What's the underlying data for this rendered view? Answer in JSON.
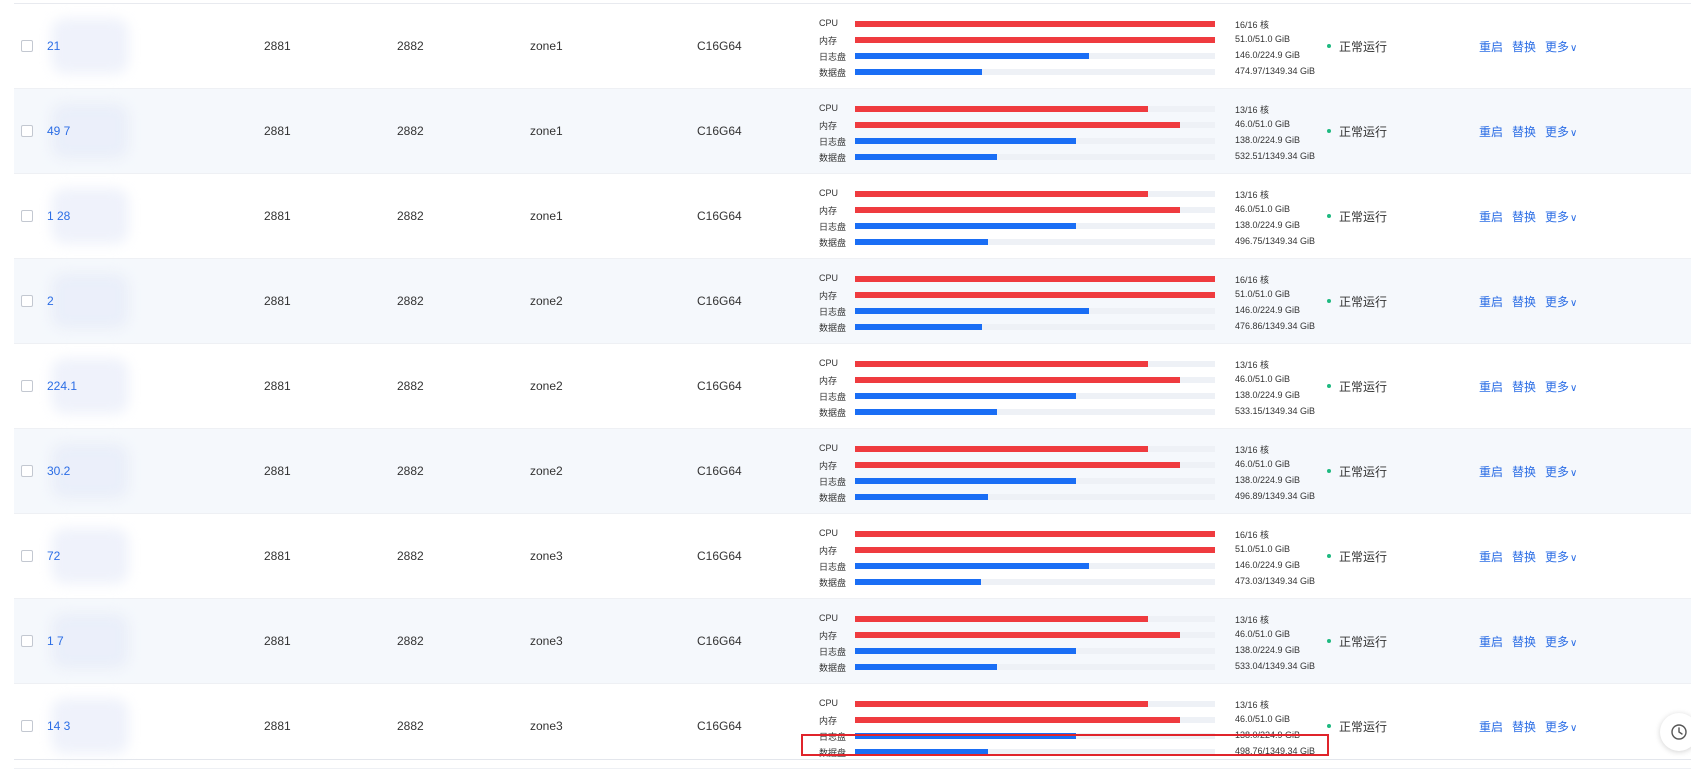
{
  "colors": {
    "cpu_fill": "#ef3b3f",
    "mem_fill": "#ef3b3f",
    "log_fill": "#1a6ef5",
    "data_fill": "#1a6ef5",
    "link": "#2b6de5",
    "status_dot": "#1eb980",
    "highlight": "#e0242b"
  },
  "resource_labels": {
    "cpu": "CPU",
    "memory": "内存",
    "log_disk": "日志盘",
    "data_disk": "数据盘"
  },
  "actions": {
    "restart": "重启",
    "replace": "替换",
    "more": "更多"
  },
  "rows": [
    {
      "ip": "21",
      "port1": "2881",
      "port2": "2882",
      "zone": "zone1",
      "spec": "C16G64",
      "cpu": {
        "used": 16,
        "total": 16,
        "text": "16/16 核"
      },
      "memory": {
        "used": 51.0,
        "total": 51.0,
        "text": "51.0/51.0 GiB"
      },
      "log_disk": {
        "used": 146.0,
        "total": 224.9,
        "text": "146.0/224.9 GiB"
      },
      "data_disk": {
        "used": 474.97,
        "total": 1349.34,
        "text": "474.97/1349.34 GiB"
      },
      "status": "正常运行"
    },
    {
      "ip": "49  7",
      "port1": "2881",
      "port2": "2882",
      "zone": "zone1",
      "spec": "C16G64",
      "cpu": {
        "used": 13,
        "total": 16,
        "text": "13/16 核"
      },
      "memory": {
        "used": 46.0,
        "total": 51.0,
        "text": "46.0/51.0 GiB"
      },
      "log_disk": {
        "used": 138.0,
        "total": 224.9,
        "text": "138.0/224.9 GiB"
      },
      "data_disk": {
        "used": 532.51,
        "total": 1349.34,
        "text": "532.51/1349.34 GiB"
      },
      "status": "正常运行"
    },
    {
      "ip": "1        28",
      "port1": "2881",
      "port2": "2882",
      "zone": "zone1",
      "spec": "C16G64",
      "cpu": {
        "used": 13,
        "total": 16,
        "text": "13/16 核"
      },
      "memory": {
        "used": 46.0,
        "total": 51.0,
        "text": "46.0/51.0 GiB"
      },
      "log_disk": {
        "used": 138.0,
        "total": 224.9,
        "text": "138.0/224.9 GiB"
      },
      "data_disk": {
        "used": 496.75,
        "total": 1349.34,
        "text": "496.75/1349.34 GiB"
      },
      "status": "正常运行"
    },
    {
      "ip": "2",
      "port1": "2881",
      "port2": "2882",
      "zone": "zone2",
      "spec": "C16G64",
      "cpu": {
        "used": 16,
        "total": 16,
        "text": "16/16 核"
      },
      "memory": {
        "used": 51.0,
        "total": 51.0,
        "text": "51.0/51.0 GiB"
      },
      "log_disk": {
        "used": 146.0,
        "total": 224.9,
        "text": "146.0/224.9 GiB"
      },
      "data_disk": {
        "used": 476.86,
        "total": 1349.34,
        "text": "476.86/1349.34 GiB"
      },
      "status": "正常运行"
    },
    {
      "ip": "224.1",
      "port1": "2881",
      "port2": "2882",
      "zone": "zone2",
      "spec": "C16G64",
      "cpu": {
        "used": 13,
        "total": 16,
        "text": "13/16 核"
      },
      "memory": {
        "used": 46.0,
        "total": 51.0,
        "text": "46.0/51.0 GiB"
      },
      "log_disk": {
        "used": 138.0,
        "total": 224.9,
        "text": "138.0/224.9 GiB"
      },
      "data_disk": {
        "used": 533.15,
        "total": 1349.34,
        "text": "533.15/1349.34 GiB"
      },
      "status": "正常运行"
    },
    {
      "ip": "30.2",
      "port1": "2881",
      "port2": "2882",
      "zone": "zone2",
      "spec": "C16G64",
      "cpu": {
        "used": 13,
        "total": 16,
        "text": "13/16 核"
      },
      "memory": {
        "used": 46.0,
        "total": 51.0,
        "text": "46.0/51.0 GiB"
      },
      "log_disk": {
        "used": 138.0,
        "total": 224.9,
        "text": "138.0/224.9 GiB"
      },
      "data_disk": {
        "used": 496.89,
        "total": 1349.34,
        "text": "496.89/1349.34 GiB"
      },
      "status": "正常运行"
    },
    {
      "ip": "72",
      "port1": "2881",
      "port2": "2882",
      "zone": "zone3",
      "spec": "C16G64",
      "cpu": {
        "used": 16,
        "total": 16,
        "text": "16/16 核"
      },
      "memory": {
        "used": 51.0,
        "total": 51.0,
        "text": "51.0/51.0 GiB"
      },
      "log_disk": {
        "used": 146.0,
        "total": 224.9,
        "text": "146.0/224.9 GiB"
      },
      "data_disk": {
        "used": 473.03,
        "total": 1349.34,
        "text": "473.03/1349.34 GiB"
      },
      "status": "正常运行"
    },
    {
      "ip": "1          7",
      "port1": "2881",
      "port2": "2882",
      "zone": "zone3",
      "spec": "C16G64",
      "cpu": {
        "used": 13,
        "total": 16,
        "text": "13/16 核"
      },
      "memory": {
        "used": 46.0,
        "total": 51.0,
        "text": "46.0/51.0 GiB"
      },
      "log_disk": {
        "used": 138.0,
        "total": 224.9,
        "text": "138.0/224.9 GiB"
      },
      "data_disk": {
        "used": 533.04,
        "total": 1349.34,
        "text": "533.04/1349.34 GiB"
      },
      "status": "正常运行"
    },
    {
      "ip": "14   3",
      "port1": "2881",
      "port2": "2882",
      "zone": "zone3",
      "spec": "C16G64",
      "cpu": {
        "used": 13,
        "total": 16,
        "text": "13/16 核"
      },
      "memory": {
        "used": 46.0,
        "total": 51.0,
        "text": "46.0/51.0 GiB"
      },
      "log_disk": {
        "used": 138.0,
        "total": 224.9,
        "text": "138.0/224.9 GiB"
      },
      "data_disk": {
        "used": 498.76,
        "total": 1349.34,
        "text": "498.76/1349.34 GiB"
      },
      "status": "正常运行"
    }
  ]
}
